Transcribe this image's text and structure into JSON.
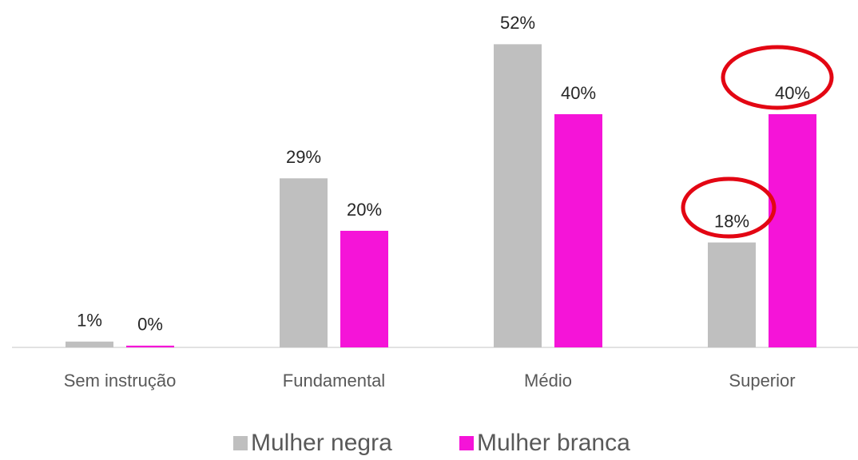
{
  "chart_data": {
    "type": "bar",
    "categories": [
      "Sem instrução",
      "Fundamental",
      "Médio",
      "Superior"
    ],
    "series": [
      {
        "name": "Mulher negra",
        "color": "#bfbfbf",
        "values": [
          1,
          29,
          52,
          18
        ],
        "value_labels": [
          "1%",
          "29%",
          "52%",
          "18%"
        ]
      },
      {
        "name": "Mulher branca",
        "color": "#f514d8",
        "values": [
          0.3,
          20,
          40,
          40
        ],
        "value_labels": [
          "0%",
          "20%",
          "40%",
          "40%"
        ]
      }
    ],
    "legend": "bottom"
  }
}
